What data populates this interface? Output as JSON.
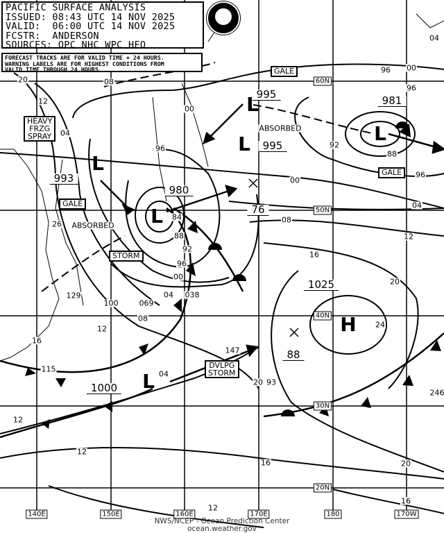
{
  "header": {
    "title": "PACIFIC SURFACE ANALYSIS",
    "issued": "ISSUED: 08:43 UTC 14 NOV 2025",
    "valid": "VALID:  06:00 UTC 14 NOV 2025",
    "forecaster": "FCSTR:  ANDERSON",
    "sources": "SOURCES: OPC NHC WPC HFO"
  },
  "notice": [
    "FORECAST TRACKS ARE FOR VALID TIME + 24 HOURS.",
    "WARNING LABELS ARE FOR HIGHEST CONDITIONS FROM",
    "VALID TIME THROUGH 24 HOURS."
  ],
  "logo": "NOAA",
  "warnings": [
    "HEAVY\nFRZG\nSPRAY",
    "GALE",
    "STORM",
    "GALE",
    "GALE",
    "DVLPG\nSTORM"
  ],
  "status_labels": [
    "ABSORBED",
    "ABSORBED"
  ],
  "centers": [
    "L",
    "L",
    "L",
    "L",
    "L",
    "L",
    "H"
  ],
  "central_pressures": [
    "993",
    "980",
    "995",
    "995",
    "981",
    "1025",
    "1000",
    "76",
    "88"
  ],
  "isobar_labels": [
    "20",
    "08",
    "12",
    "04",
    "96",
    "00",
    "84",
    "88",
    "92",
    "96",
    "00",
    "04",
    "038",
    "26",
    "129",
    "100",
    "069",
    "08",
    "12",
    "16",
    "115",
    "04",
    "147",
    "20",
    "93",
    "24",
    "16",
    "20",
    "12",
    "08",
    "04",
    "00",
    "96",
    "92",
    "88",
    "96",
    "00",
    "04",
    "96",
    "12",
    "12",
    "16",
    "20",
    "16",
    "12",
    "246"
  ],
  "grid_labels": {
    "latitudes": [
      "60N",
      "50N",
      "40N",
      "30N",
      "20N"
    ],
    "longitudes": [
      "140E",
      "150E",
      "160E",
      "170E",
      "180",
      "170W"
    ]
  },
  "footer": {
    "line1": "NWS/NCEP - Ocean Prediction Center",
    "line2": "ocean.weather.gov"
  }
}
